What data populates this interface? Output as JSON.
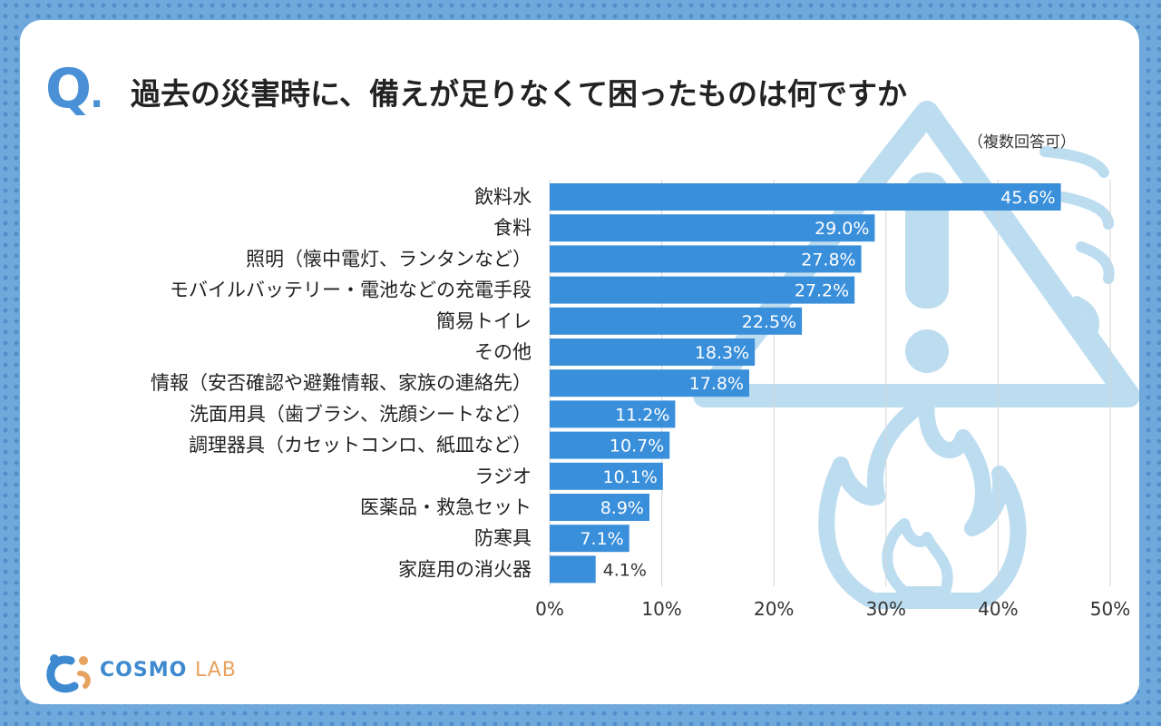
{
  "question_mark": "Q",
  "question_dot": ".",
  "title": "過去の災害時に、備えが足りなくて困ったものは何ですか",
  "subtitle": "（複数回答可）",
  "logo": {
    "word1": "COSMO",
    "word2": "LAB"
  },
  "colors": {
    "bar": "#3a8fdb",
    "accent": "#4a90d6",
    "grid": "#d6d6d6",
    "deco": "#bcdcf0"
  },
  "chart_data": {
    "type": "bar",
    "orientation": "horizontal",
    "title": "過去の災害時に、備えが足りなくて困ったものは何ですか",
    "categories": [
      "飲料水",
      "食料",
      "照明（懐中電灯、ランタンなど）",
      "モバイルバッテリー・電池などの充電手段",
      "簡易トイレ",
      "その他",
      "情報（安否確認や避難情報、家族の連絡先）",
      "洗面用具（歯ブラシ、洗顔シートなど）",
      "調理器具（カセットコンロ、紙皿など）",
      "ラジオ",
      "医薬品・救急セット",
      "防寒具",
      "家庭用の消火器"
    ],
    "values": [
      45.6,
      29.0,
      27.8,
      27.2,
      22.5,
      18.3,
      17.8,
      11.2,
      10.7,
      10.1,
      8.9,
      7.1,
      4.1
    ],
    "value_labels": [
      "45.6%",
      "29.0%",
      "27.8%",
      "27.2%",
      "22.5%",
      "18.3%",
      "17.8%",
      "11.2%",
      "10.7%",
      "10.1%",
      "8.9%",
      "7.1%",
      "4.1%"
    ],
    "xlim": [
      0,
      50
    ],
    "xticks": [
      0,
      10,
      20,
      30,
      40,
      50
    ],
    "xtick_labels": [
      "0%",
      "10%",
      "20%",
      "30%",
      "40%",
      "50%"
    ],
    "xlabel": "",
    "ylabel": "",
    "grid": "vertical"
  }
}
